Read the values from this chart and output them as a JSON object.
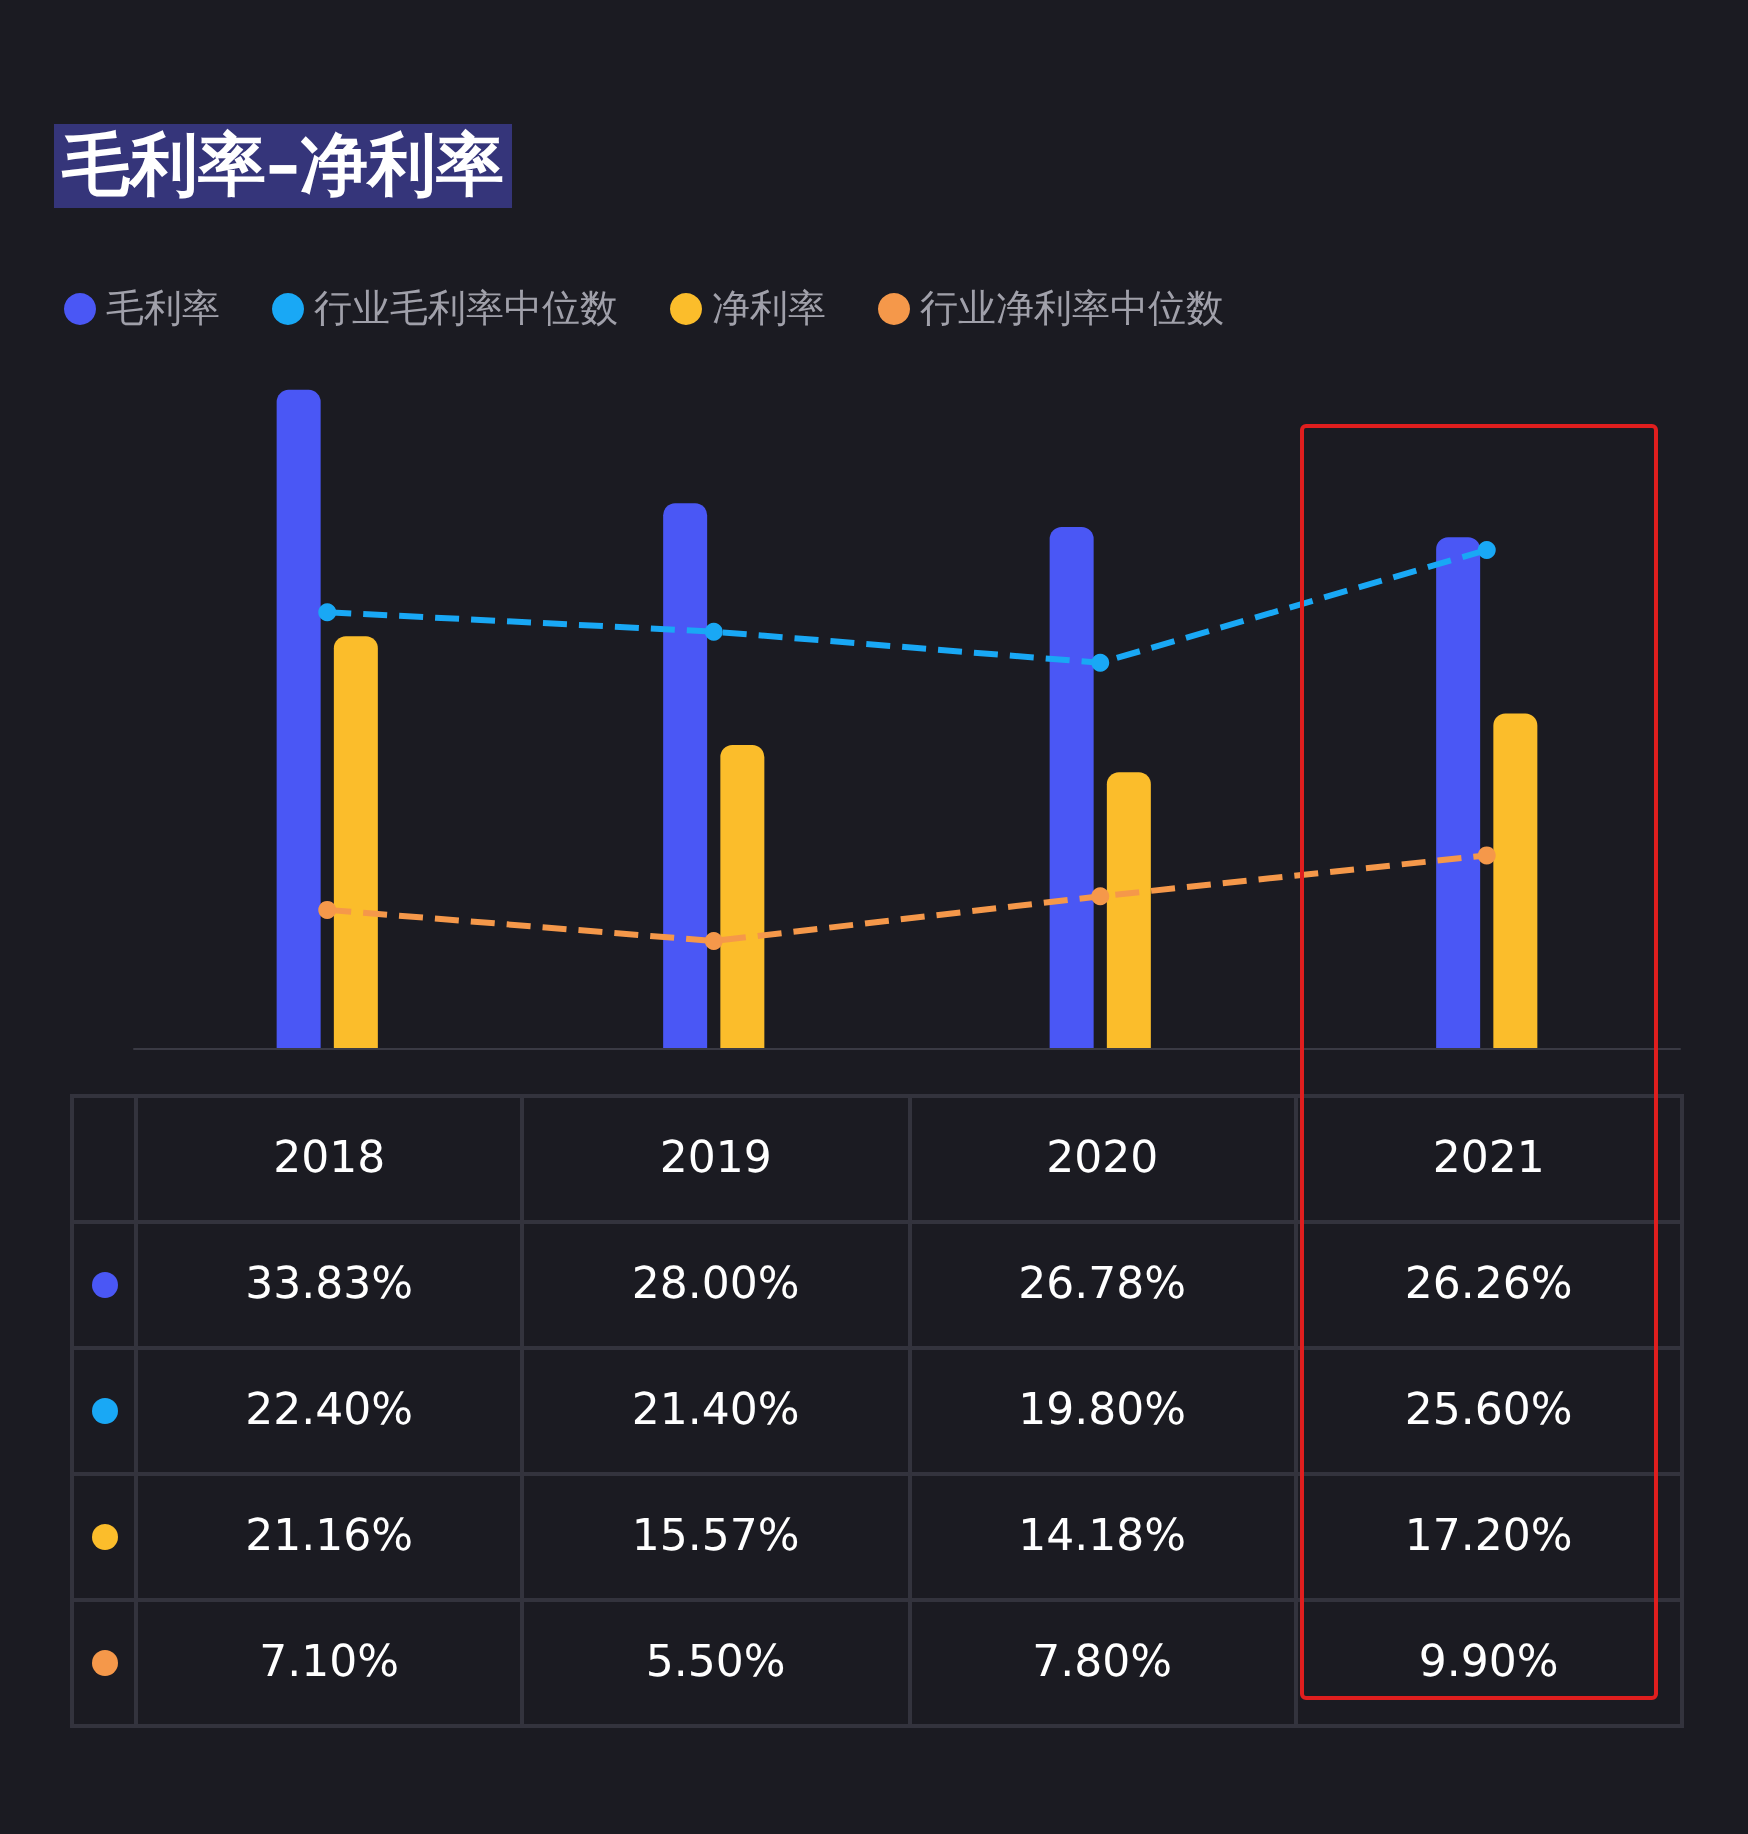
{
  "chart_data": {
    "type": "bar",
    "title": "毛利率–净利率",
    "categories": [
      "2018",
      "2019",
      "2020",
      "2021"
    ],
    "legend": "top left",
    "grid": false,
    "series": [
      {
        "name": "毛利率",
        "color": "#4a57f5",
        "values": [
          33.83,
          28.0,
          26.78,
          26.26
        ],
        "value_labels": [
          "33.83%",
          "28.00%",
          "26.78%",
          "26.26%"
        ]
      },
      {
        "name": "行业毛利率中位数",
        "type": "line",
        "color": "#19a8f5",
        "marker": "circle",
        "line_style": "dashed",
        "values": [
          22.4,
          21.4,
          19.8,
          25.6
        ],
        "value_labels": [
          "22.40%",
          "21.40%",
          "19.80%",
          "25.60%"
        ]
      },
      {
        "name": "净利率",
        "color": "#fbbd2b",
        "values": [
          21.16,
          15.57,
          14.18,
          17.2
        ],
        "value_labels": [
          "21.16%",
          "15.57%",
          "14.18%",
          "17.20%"
        ]
      },
      {
        "name": "行业净利率中位数",
        "type": "line",
        "color": "#f5984a",
        "marker": "circle",
        "line_style": "dashed",
        "values": [
          7.1,
          5.5,
          7.8,
          9.9
        ],
        "value_labels": [
          "7.10%",
          "5.50%",
          "7.80%",
          "9.90%"
        ]
      }
    ]
  }
}
